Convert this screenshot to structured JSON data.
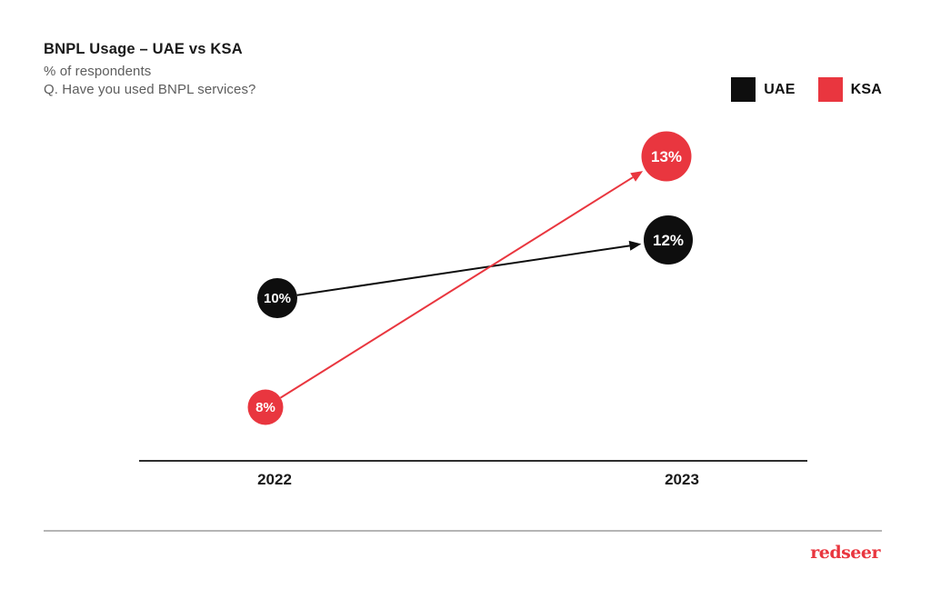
{
  "header": {
    "title": "BNPL Usage – UAE vs KSA",
    "subtitle": "% of respondents",
    "question": "Q. Have you used BNPL services?"
  },
  "legend": [
    {
      "label": "UAE",
      "color": "#0e0e0e"
    },
    {
      "label": "KSA",
      "color": "#e9363f"
    }
  ],
  "chart_data": {
    "type": "line",
    "subtype": "slope-chart-with-arrows",
    "title": "BNPL Usage – UAE vs KSA",
    "subtitle": "% of respondents",
    "question": "Q. Have you used BNPL services?",
    "unit": "%",
    "categories": [
      "2022",
      "2023"
    ],
    "series": [
      {
        "name": "UAE",
        "color": "#0e0e0e",
        "values": [
          10,
          12
        ],
        "labels": [
          "10%",
          "12%"
        ]
      },
      {
        "name": "KSA",
        "color": "#e9363f",
        "values": [
          8,
          13
        ],
        "labels": [
          "8%",
          "13%"
        ]
      }
    ],
    "legend_position": "top-right",
    "grid": false,
    "y_axis_shown": false,
    "x_axis_shown": true,
    "annotation_style": "values inside colored bubbles, arrow from 2022 to 2023"
  },
  "axis": {
    "labels": [
      "2022",
      "2023"
    ]
  },
  "footer": {
    "brand": "redseer"
  },
  "colors": {
    "uae_black": "#0e0e0e",
    "ksa_red": "#e9363f",
    "background": "#ffffff",
    "title_text": "#1a1a1a",
    "subtitle_text": "#5d5d5d",
    "axis_line": "#2e2e2e",
    "divider": "#b5b5b5",
    "bubble_text": "#ffffff"
  }
}
